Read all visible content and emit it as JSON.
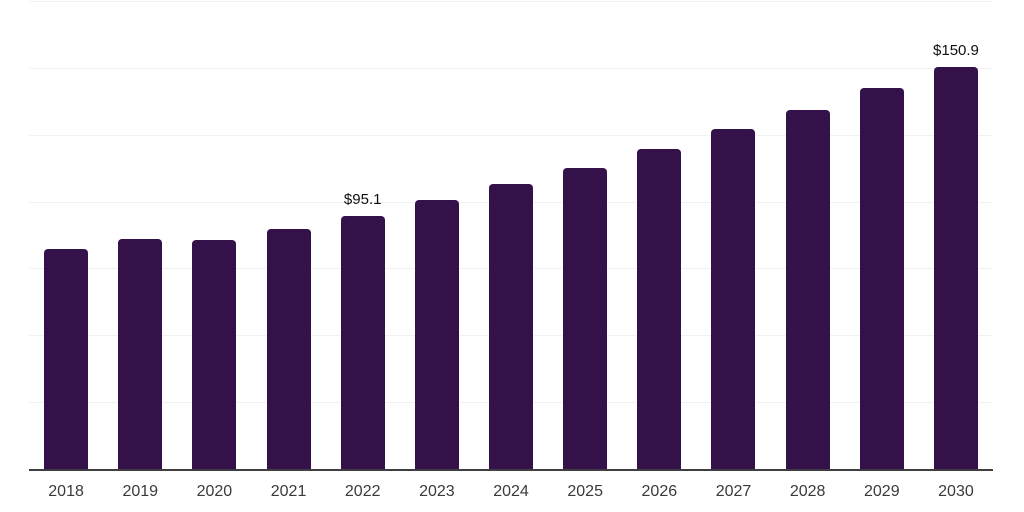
{
  "chart_data": {
    "type": "bar",
    "title": "",
    "xlabel": "",
    "ylabel": "",
    "categories": [
      "2018",
      "2019",
      "2020",
      "2021",
      "2022",
      "2023",
      "2024",
      "2025",
      "2026",
      "2027",
      "2028",
      "2029",
      "2030"
    ],
    "values": [
      82.7,
      86.3,
      86.0,
      90.0,
      95.1,
      100.9,
      106.9,
      113.0,
      120.0,
      127.5,
      134.6,
      142.8,
      150.9
    ],
    "data_labels": {
      "2022": "$95.1",
      "2030": "$150.9"
    },
    "ylim": [
      0,
      175
    ],
    "gridline_step": 25,
    "grid": "horizontal-only",
    "legend_position": "none",
    "colors": {
      "bar": "#351149",
      "gridline": "#f1f1f3",
      "axis_line": "#3f3f41",
      "tick_label": "#3a3a3c",
      "value_label": "#101010",
      "background": "#ffffff"
    }
  }
}
